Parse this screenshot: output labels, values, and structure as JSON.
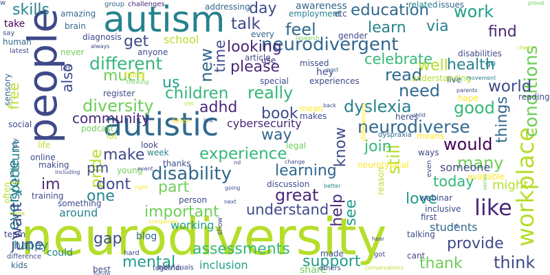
{
  "word_cloud": {
    "palette": {
      "purple": "#440154",
      "indigo": "#482878",
      "blue": "#3e4a89",
      "steel": "#31688e",
      "teal": "#26828e",
      "green": "#1f9e89",
      "mint": "#35b779",
      "lime": "#6ece58",
      "yellowgreen": "#b5de2b",
      "yellow": "#fde725"
    },
    "words": [
      {
        "text": "neurodiversity",
        "color": "#b5de2b"
      },
      {
        "text": "people",
        "color": "#3e4a89"
      },
      {
        "text": "autism",
        "color": "#26828e"
      },
      {
        "text": "autistic",
        "color": "#31688e"
      },
      {
        "text": "neurodivergent",
        "color": "#31688e"
      },
      {
        "text": "workplace",
        "color": "#b5de2b"
      },
      {
        "text": "conditions",
        "color": "#6ece58"
      },
      {
        "text": "neurodiverse",
        "color": "#31688e"
      },
      {
        "text": "disability",
        "color": "#31688e"
      },
      {
        "text": "different",
        "color": "#35b779"
      },
      {
        "text": "diversity",
        "color": "#6ece58"
      },
      {
        "text": "children",
        "color": "#35b779"
      },
      {
        "text": "experience",
        "color": "#35b779"
      },
      {
        "text": "looking",
        "color": "#482878"
      },
      {
        "text": "education",
        "color": "#31688e"
      },
      {
        "text": "celebrate",
        "color": "#35b779"
      },
      {
        "text": "dyslexia",
        "color": "#26828e"
      },
      {
        "text": "learning",
        "color": "#31688e"
      },
      {
        "text": "everyone",
        "color": "#26828e"
      },
      {
        "text": "important",
        "color": "#6ece58"
      },
      {
        "text": "understand",
        "color": "#3e4a89"
      },
      {
        "text": "assessments",
        "color": "#35b779"
      },
      {
        "text": "mental",
        "color": "#1f9e89"
      },
      {
        "text": "support",
        "color": "#1f9e89"
      },
      {
        "text": "provide",
        "color": "#3e4a89"
      },
      {
        "text": "thank",
        "color": "#6ece58"
      },
      {
        "text": "think",
        "color": "#3e4a89"
      },
      {
        "text": "like",
        "color": "#482878"
      },
      {
        "text": "work",
        "color": "#1f9e89"
      },
      {
        "text": "find",
        "color": "#482878"
      },
      {
        "text": "health",
        "color": "#26828e"
      },
      {
        "text": "world",
        "color": "#3e4a89"
      },
      {
        "text": "good",
        "color": "#35b779"
      },
      {
        "text": "things",
        "color": "#31688e"
      },
      {
        "text": "would",
        "color": "#440154"
      },
      {
        "text": "many",
        "color": "#6ece58"
      },
      {
        "text": "today",
        "color": "#35b779"
      },
      {
        "text": "love",
        "color": "#1f9e89"
      },
      {
        "text": "help",
        "color": "#482878"
      },
      {
        "text": "great",
        "color": "#482878"
      },
      {
        "text": "still",
        "color": "#b5de2b"
      },
      {
        "text": "know",
        "color": "#3e4a89"
      },
      {
        "text": "join",
        "color": "#35b779"
      },
      {
        "text": "need",
        "color": "#31688e"
      },
      {
        "text": "read",
        "color": "#31688e"
      },
      {
        "text": "really",
        "color": "#35b779"
      },
      {
        "text": "book",
        "color": "#3e4a89"
      },
      {
        "text": "adhd",
        "color": "#482878"
      },
      {
        "text": "please",
        "color": "#482878"
      },
      {
        "text": "feel",
        "color": "#31688e"
      },
      {
        "text": "talk",
        "color": "#3e4a89"
      },
      {
        "text": "day",
        "color": "#3e4a89"
      },
      {
        "text": "time",
        "color": "#3e4a89"
      },
      {
        "text": "new",
        "color": "#31688e"
      },
      {
        "text": "make",
        "color": "#3e4a89"
      },
      {
        "text": "community",
        "color": "#482878"
      },
      {
        "text": "way",
        "color": "#31688e"
      },
      {
        "text": "part",
        "color": "#6ece58"
      },
      {
        "text": "pride",
        "color": "#b5de2b"
      },
      {
        "text": "dont",
        "color": "#3e4a89"
      },
      {
        "text": "one",
        "color": "#26828e"
      },
      {
        "text": "june",
        "color": "#3e4a89"
      },
      {
        "text": "gap",
        "color": "#3e4a89"
      },
      {
        "text": "pm",
        "color": "#3e4a89"
      },
      {
        "text": "im",
        "color": "#482878"
      },
      {
        "text": "want",
        "color": "#3e4a89"
      },
      {
        "text": "also",
        "color": "#3e4a89"
      },
      {
        "text": "much",
        "color": "#6ece58"
      },
      {
        "text": "get",
        "color": "#3e4a89"
      },
      {
        "text": "us",
        "color": "#1f9e89"
      },
      {
        "text": "skills",
        "color": "#26828e"
      },
      {
        "text": "learn",
        "color": "#26828e"
      },
      {
        "text": "well",
        "color": "#b5de2b"
      },
      {
        "text": "spectrum",
        "color": "#26828e"
      },
      {
        "text": "free",
        "color": "#b5de2b"
      },
      {
        "text": "cybersecurity",
        "color": "#482878"
      },
      {
        "text": "via",
        "color": "#26828e"
      },
      {
        "text": "see",
        "color": "#1f9e89"
      },
      {
        "text": "working",
        "color": "#1f9e89"
      },
      {
        "text": "around",
        "color": "#26828e"
      },
      {
        "text": "happy",
        "color": "#26828e"
      },
      {
        "text": "inclusion",
        "color": "#1f9e89"
      },
      {
        "text": "might",
        "color": "#b5de2b"
      },
      {
        "text": "someone",
        "color": "#3e4a89"
      },
      {
        "text": "students",
        "color": "#31688e"
      },
      {
        "text": "blog",
        "color": "#31688e"
      },
      {
        "text": "could",
        "color": "#26828e"
      },
      {
        "text": "share",
        "color": "#6ece58"
      },
      {
        "text": "kids",
        "color": "#31688e"
      },
      {
        "text": "awareness",
        "color": "#31688e"
      },
      {
        "text": "addressing",
        "color": "#31688e"
      },
      {
        "text": "take",
        "color": "#440154"
      },
      {
        "text": "school",
        "color": "#b5de2b"
      },
      {
        "text": "diagnosis",
        "color": "#3e4a89"
      },
      {
        "text": "group",
        "color": "#31688e"
      },
      {
        "text": "challenges",
        "color": "#482878"
      },
      {
        "text": "employment",
        "color": "#26828e"
      },
      {
        "text": "related",
        "color": "#26828e"
      },
      {
        "text": "issues",
        "color": "#31688e"
      },
      {
        "text": "proud",
        "color": "#6ece58"
      },
      {
        "text": "etc",
        "color": "#3e4a89"
      },
      {
        "text": "gender",
        "color": "#3e4a89"
      },
      {
        "text": "every",
        "color": "#31688e"
      },
      {
        "text": "research",
        "color": "#6ece58"
      },
      {
        "text": "amazing",
        "color": "#31688e"
      },
      {
        "text": "say",
        "color": "#3e4a89"
      },
      {
        "text": "human",
        "color": "#31688e"
      },
      {
        "text": "brain",
        "color": "#31688e"
      },
      {
        "text": "always",
        "color": "#3e4a89"
      },
      {
        "text": "latest",
        "color": "#3e4a89"
      },
      {
        "text": "never",
        "color": "#6ece58"
      },
      {
        "text": "anyone",
        "color": "#3e4a89"
      },
      {
        "text": "article",
        "color": "#3e4a89"
      },
      {
        "text": "use",
        "color": "#482878"
      },
      {
        "text": "missed",
        "color": "#3e4a89"
      },
      {
        "text": "hey",
        "color": "#3e4a89"
      },
      {
        "text": "post",
        "color": "#31688e"
      },
      {
        "text": "disabilities",
        "color": "#3e4a89"
      },
      {
        "text": "go",
        "color": "#26828e"
      },
      {
        "text": "check",
        "color": "#b5de2b"
      },
      {
        "text": "let",
        "color": "#3e4a89"
      },
      {
        "text": "thing",
        "color": "#fde725"
      },
      {
        "text": "understanding",
        "color": "#b5de2b"
      },
      {
        "text": "live",
        "color": "#31688e"
      },
      {
        "text": "movement",
        "color": "#26828e"
      },
      {
        "text": "sensory",
        "color": "#31688e"
      },
      {
        "text": "thinking",
        "color": "#6ece58"
      },
      {
        "text": "special",
        "color": "#3e4a89"
      },
      {
        "text": "experiences",
        "color": "#3e4a89"
      },
      {
        "text": "register",
        "color": "#3e4a89"
      },
      {
        "text": "parents",
        "color": "#3e4a89"
      },
      {
        "text": "hope",
        "color": "#fde725"
      },
      {
        "text": "reading",
        "color": "#3e4a89"
      },
      {
        "text": "yes",
        "color": "#b5de2b"
      },
      {
        "text": "back",
        "color": "#3e4a89"
      },
      {
        "text": "mean",
        "color": "#fde725"
      },
      {
        "text": "makes",
        "color": "#3e4a89"
      },
      {
        "text": "heres",
        "color": "#3e4a89"
      },
      {
        "text": "child",
        "color": "#3e4a89"
      },
      {
        "text": "listen",
        "color": "#fde725"
      },
      {
        "text": "link",
        "color": "#3e4a89"
      },
      {
        "text": "podcast",
        "color": "#6ece58"
      },
      {
        "text": "differences",
        "color": "#fde725"
      },
      {
        "text": "dyspraxia",
        "color": "#31688e"
      },
      {
        "text": "means",
        "color": "#fde725"
      },
      {
        "text": "social",
        "color": "#3e4a89"
      },
      {
        "text": "july",
        "color": "#3e4a89"
      },
      {
        "text": "lot",
        "color": "#b5de2b"
      },
      {
        "text": "look",
        "color": "#3e4a89"
      },
      {
        "text": "legal",
        "color": "#6ece58"
      },
      {
        "text": "life",
        "color": "#b5de2b"
      },
      {
        "text": "online",
        "color": "#3e4a89"
      },
      {
        "text": "making",
        "color": "#3e4a89"
      },
      {
        "text": "week",
        "color": "#26828e"
      },
      {
        "text": "thanks",
        "color": "#3e4a89"
      },
      {
        "text": "young",
        "color": "#6ece58"
      },
      {
        "text": "event",
        "color": "#3e4a89"
      },
      {
        "text": "nd",
        "color": "#3e4a89"
      },
      {
        "text": "change",
        "color": "#3e4a89"
      },
      {
        "text": "neurotypical",
        "color": "#fde725"
      },
      {
        "text": "ways",
        "color": "#3e4a89"
      },
      {
        "text": "even",
        "color": "#3e4a89"
      },
      {
        "text": "series",
        "color": "#6ece58"
      },
      {
        "text": "available",
        "color": "#fde725"
      },
      {
        "text": "often",
        "color": "#b5de2b"
      },
      {
        "text": "including",
        "color": "#3e4a89"
      },
      {
        "text": "right",
        "color": "#fde725"
      },
      {
        "text": "going",
        "color": "#3e4a89"
      },
      {
        "text": "discussion",
        "color": "#3e4a89"
      },
      {
        "text": "better",
        "color": "#26828e"
      },
      {
        "text": "reason",
        "color": "#b5de2b"
      },
      {
        "text": "training",
        "color": "#3e4a89"
      },
      {
        "text": "something",
        "color": "#3e4a89"
      },
      {
        "text": "person",
        "color": "#3e4a89"
      },
      {
        "text": "next",
        "color": "#3e4a89"
      },
      {
        "text": "show",
        "color": "#3e4a89"
      },
      {
        "text": "webinar",
        "color": "#3e4a89"
      },
      {
        "text": "inclusive",
        "color": "#3e4a89"
      },
      {
        "text": "first",
        "color": "#3e4a89"
      },
      {
        "text": "come",
        "color": "#b5de2b"
      },
      {
        "text": "team",
        "color": "#3e4a89"
      },
      {
        "text": "talking",
        "color": "#3e4a89"
      },
      {
        "text": "rt",
        "color": "#3e4a89"
      },
      {
        "text": "companies",
        "color": "#fde725"
      },
      {
        "text": "hard",
        "color": "#3e4a89"
      },
      {
        "text": "difference",
        "color": "#3e4a89"
      },
      {
        "text": "hear",
        "color": "#3e4a89"
      },
      {
        "text": "got",
        "color": "#3e4a89"
      },
      {
        "text": "cant",
        "color": "#3e4a89"
      },
      {
        "text": "made",
        "color": "#3e4a89"
      },
      {
        "text": "best",
        "color": "#3e4a89"
      },
      {
        "text": "individuals",
        "color": "#3e4a89"
      },
      {
        "text": "others",
        "color": "#3e4a89"
      },
      {
        "text": "future",
        "color": "#3e4a89"
      },
      {
        "text": "conversations",
        "color": "#b5de2b"
      },
      {
        "text": "together",
        "color": "#3e4a89"
      },
      {
        "text": "may",
        "color": "#fde725"
      },
      {
        "text": "w",
        "color": "#3e4a89"
      }
    ]
  }
}
